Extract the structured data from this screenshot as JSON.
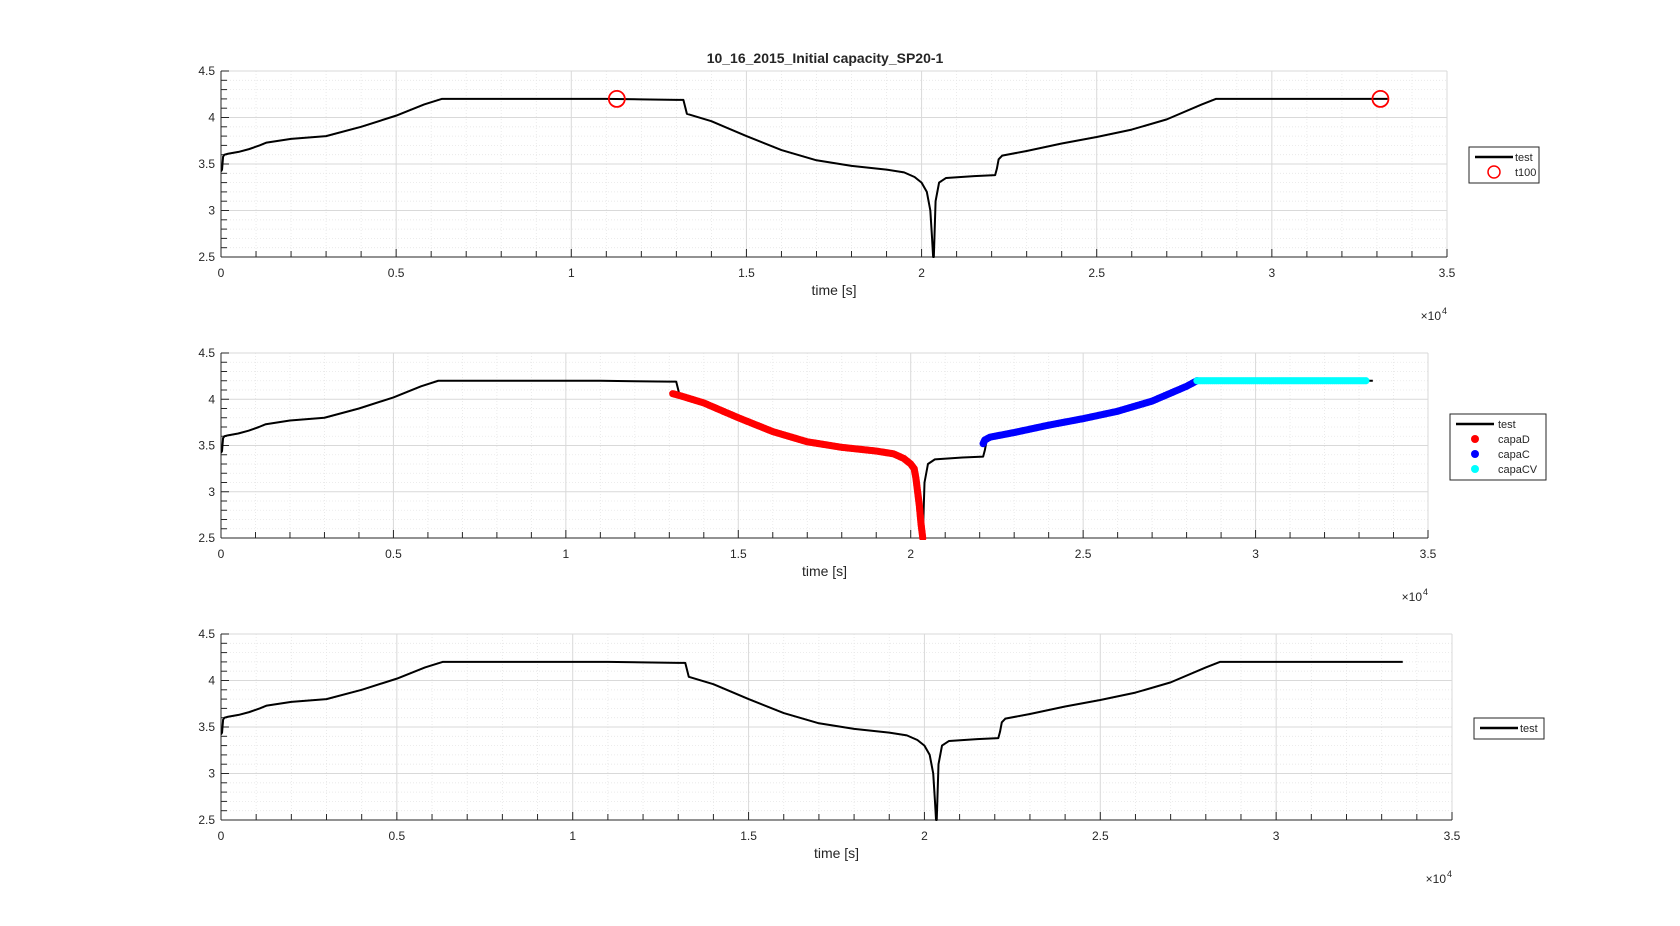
{
  "figure": {
    "title": "10_16_2015_Initial capacity_SP20-1",
    "colors": {
      "test": "#000000",
      "t100": "#ff0000",
      "capaD": "#ff0000",
      "capaC": "#0000ff",
      "capaCV": "#00ffff",
      "grid": "#d9d9d9",
      "axis": "#262626"
    }
  },
  "chart_data": [
    {
      "type": "line",
      "title": "10_16_2015_Initial capacity_SP20-1",
      "xlabel": "time [s]",
      "ylabel": "",
      "x_exponent": "×10",
      "x_exponent_power": "4",
      "xlim": [
        0,
        35000
      ],
      "ylim": [
        2.5,
        4.5
      ],
      "xticks": [
        0,
        5000,
        10000,
        15000,
        20000,
        25000,
        30000,
        35000
      ],
      "xtick_labels": [
        "0",
        "0.5",
        "1",
        "1.5",
        "2",
        "2.5",
        "3",
        "3.5"
      ],
      "yticks": [
        2.5,
        3,
        3.5,
        4,
        4.5
      ],
      "ytick_labels": [
        "2.5",
        "3",
        "3.5",
        "4",
        "4.5"
      ],
      "grid": true,
      "minor_grid": true,
      "legend_position": "right-outside",
      "series": [
        {
          "name": "test",
          "style": "line",
          "color": "#000000",
          "x": [
            0,
            30,
            60,
            100,
            200,
            500,
            800,
            1100,
            1300,
            2000,
            3000,
            4000,
            5000,
            5800,
            6300,
            7000,
            9000,
            11000,
            12000,
            13000,
            13150,
            13200,
            13300,
            14000,
            15000,
            16000,
            17000,
            18000,
            19000,
            19500,
            19800,
            20000,
            20150,
            20250,
            20300,
            20330,
            20350,
            20400,
            20500,
            20700,
            21500,
            22100,
            22150,
            22200,
            22300,
            23000,
            24000,
            25000,
            26000,
            27000,
            28000,
            28400,
            29000,
            31000,
            33000,
            33300
          ],
          "y": [
            3.42,
            3.44,
            3.58,
            3.6,
            3.61,
            3.63,
            3.66,
            3.7,
            3.73,
            3.77,
            3.8,
            3.9,
            4.02,
            4.14,
            4.2,
            4.2,
            4.2,
            4.2,
            4.195,
            4.19,
            4.19,
            4.19,
            4.04,
            3.96,
            3.8,
            3.65,
            3.54,
            3.48,
            3.44,
            3.41,
            3.36,
            3.3,
            3.2,
            3.0,
            2.7,
            2.5,
            2.5,
            3.1,
            3.3,
            3.35,
            3.37,
            3.38,
            3.45,
            3.55,
            3.59,
            3.64,
            3.72,
            3.79,
            3.87,
            3.98,
            4.14,
            4.2,
            4.2,
            4.2,
            4.2,
            4.2
          ]
        },
        {
          "name": "t100",
          "style": "marker-circle",
          "color": "#ff0000",
          "x": [
            11300,
            33100
          ],
          "y": [
            4.2,
            4.2
          ]
        }
      ]
    },
    {
      "type": "line",
      "title": "",
      "xlabel": "time [s]",
      "ylabel": "",
      "x_exponent": "×10",
      "x_exponent_power": "4",
      "xlim": [
        0,
        35000
      ],
      "ylim": [
        2.5,
        4.5
      ],
      "xticks": [
        0,
        5000,
        10000,
        15000,
        20000,
        25000,
        30000,
        35000
      ],
      "xtick_labels": [
        "0",
        "0.5",
        "1",
        "1.5",
        "2",
        "2.5",
        "3",
        "3.5"
      ],
      "yticks": [
        2.5,
        3,
        3.5,
        4,
        4.5
      ],
      "ytick_labels": [
        "2.5",
        "3",
        "3.5",
        "4",
        "4.5"
      ],
      "grid": true,
      "minor_grid": true,
      "legend_position": "right-outside",
      "series": [
        {
          "name": "test",
          "style": "line",
          "color": "#000000",
          "x": [
            0,
            30,
            60,
            100,
            200,
            500,
            800,
            1100,
            1300,
            2000,
            3000,
            4000,
            5000,
            5800,
            6300,
            7000,
            9000,
            11000,
            12000,
            13000,
            13150,
            13200,
            13300,
            14000,
            15000,
            16000,
            17000,
            18000,
            19000,
            19500,
            19800,
            20000,
            20150,
            20250,
            20300,
            20330,
            20350,
            20400,
            20500,
            20700,
            21500,
            22100,
            22150,
            22200,
            22300,
            23000,
            24000,
            25000,
            26000,
            27000,
            28000,
            28400,
            29000,
            31000,
            33000,
            33400
          ],
          "y": [
            3.42,
            3.44,
            3.58,
            3.6,
            3.61,
            3.63,
            3.66,
            3.7,
            3.73,
            3.77,
            3.8,
            3.9,
            4.02,
            4.14,
            4.2,
            4.2,
            4.2,
            4.2,
            4.195,
            4.19,
            4.19,
            4.19,
            4.04,
            3.96,
            3.8,
            3.65,
            3.54,
            3.48,
            3.44,
            3.41,
            3.36,
            3.3,
            3.2,
            3.0,
            2.7,
            2.5,
            2.5,
            3.1,
            3.3,
            3.35,
            3.37,
            3.38,
            3.45,
            3.55,
            3.59,
            3.64,
            3.72,
            3.79,
            3.87,
            3.98,
            4.14,
            4.2,
            4.2,
            4.2,
            4.2,
            4.2
          ]
        },
        {
          "name": "capaD",
          "style": "marker-dot",
          "color": "#ff0000",
          "x": [
            13100,
            13300,
            14000,
            15000,
            16000,
            17000,
            18000,
            19000,
            19500,
            19800,
            20000,
            20100,
            20150,
            20200,
            20250,
            20300,
            20350
          ],
          "y": [
            4.06,
            4.04,
            3.96,
            3.8,
            3.65,
            3.54,
            3.48,
            3.44,
            3.41,
            3.36,
            3.3,
            3.25,
            3.15,
            3.0,
            2.85,
            2.65,
            2.5
          ]
        },
        {
          "name": "capaC",
          "style": "marker-dot",
          "color": "#0000ff",
          "x": [
            22100,
            22150,
            22300,
            23000,
            24000,
            25000,
            26000,
            27000,
            28000,
            28300
          ],
          "y": [
            3.52,
            3.56,
            3.59,
            3.64,
            3.72,
            3.79,
            3.87,
            3.98,
            4.14,
            4.2
          ]
        },
        {
          "name": "capaCV",
          "style": "marker-dot",
          "color": "#00ffff",
          "x": [
            28300,
            30000,
            32000,
            33200
          ],
          "y": [
            4.2,
            4.2,
            4.2,
            4.2
          ]
        }
      ]
    },
    {
      "type": "line",
      "title": "",
      "xlabel": "time [s]",
      "ylabel": "",
      "x_exponent": "×10",
      "x_exponent_power": "4",
      "xlim": [
        0,
        35000
      ],
      "ylim": [
        2.5,
        4.5
      ],
      "xticks": [
        0,
        5000,
        10000,
        15000,
        20000,
        25000,
        30000,
        35000
      ],
      "xtick_labels": [
        "0",
        "0.5",
        "1",
        "1.5",
        "2",
        "2.5",
        "3",
        "3.5"
      ],
      "yticks": [
        2.5,
        3,
        3.5,
        4,
        4.5
      ],
      "ytick_labels": [
        "2.5",
        "3",
        "3.5",
        "4",
        "4.5"
      ],
      "grid": true,
      "minor_grid": true,
      "legend_position": "right-outside",
      "series": [
        {
          "name": "test",
          "style": "line",
          "color": "#000000",
          "x": [
            0,
            30,
            60,
            100,
            200,
            500,
            800,
            1100,
            1300,
            2000,
            3000,
            4000,
            5000,
            5800,
            6300,
            7000,
            9000,
            11000,
            12000,
            13000,
            13150,
            13200,
            13300,
            14000,
            15000,
            16000,
            17000,
            18000,
            19000,
            19500,
            19800,
            20000,
            20150,
            20250,
            20300,
            20330,
            20350,
            20400,
            20500,
            20700,
            21500,
            22100,
            22150,
            22200,
            22300,
            23000,
            24000,
            25000,
            26000,
            27000,
            28000,
            28400,
            29000,
            31000,
            33000,
            33600
          ],
          "y": [
            3.42,
            3.44,
            3.58,
            3.6,
            3.61,
            3.63,
            3.66,
            3.7,
            3.73,
            3.77,
            3.8,
            3.9,
            4.02,
            4.14,
            4.2,
            4.2,
            4.2,
            4.2,
            4.195,
            4.19,
            4.19,
            4.19,
            4.04,
            3.96,
            3.8,
            3.65,
            3.54,
            3.48,
            3.44,
            3.41,
            3.36,
            3.3,
            3.2,
            3.0,
            2.7,
            2.5,
            2.5,
            3.1,
            3.3,
            3.35,
            3.37,
            3.38,
            3.45,
            3.55,
            3.59,
            3.64,
            3.72,
            3.79,
            3.87,
            3.98,
            4.14,
            4.2,
            4.2,
            4.2,
            4.2,
            4.2
          ]
        }
      ]
    }
  ]
}
